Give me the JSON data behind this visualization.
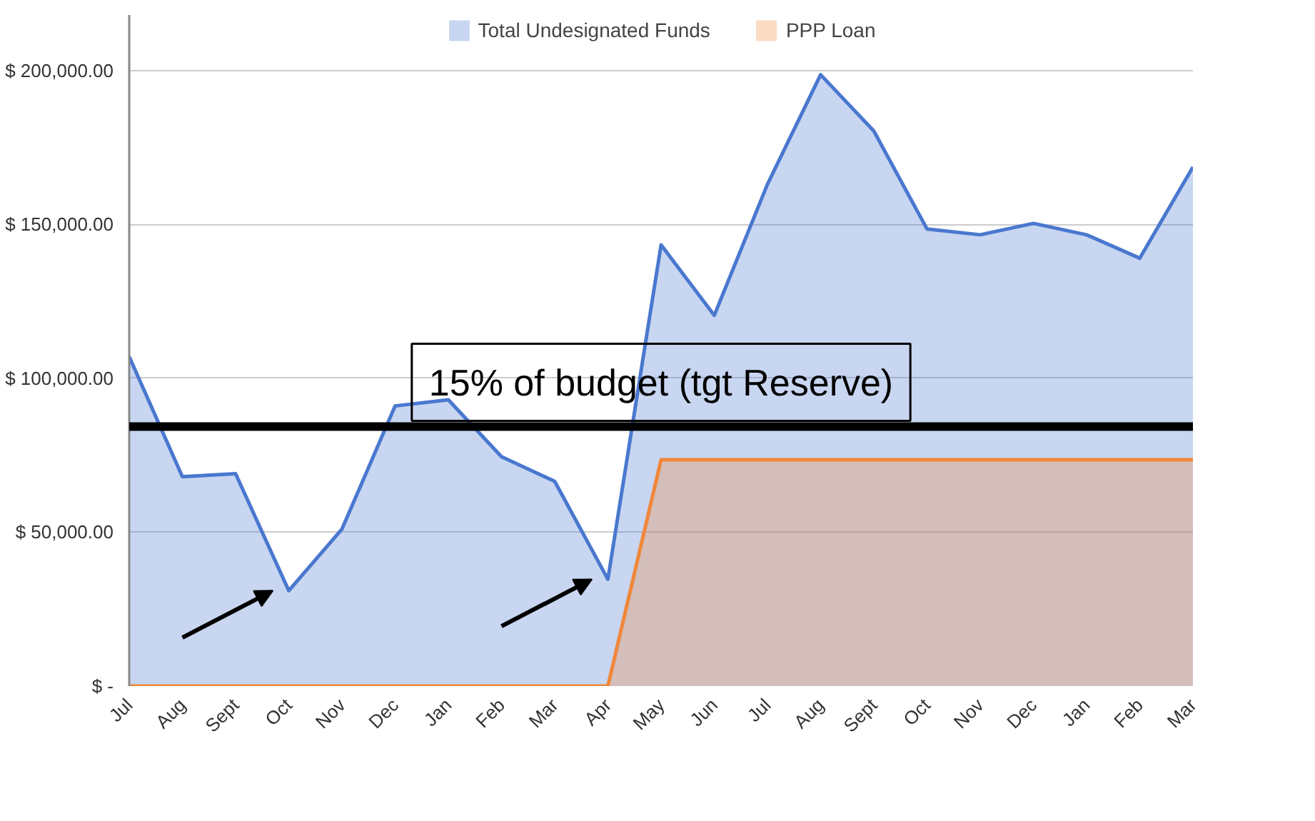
{
  "chart_data": {
    "type": "area",
    "categories": [
      "Jul",
      "Aug",
      "Sept",
      "Oct",
      "Nov",
      "Dec",
      "Jan",
      "Feb",
      "Mar",
      "Apr",
      "May",
      "Jun",
      "Jul",
      "Aug",
      "Sept",
      "Oct",
      "Nov",
      "Dec",
      "Jan",
      "Feb",
      "Mar"
    ],
    "series": [
      {
        "name": "Total Undesignated Funds",
        "color": "#4a78cf",
        "values": [
          107000,
          68000,
          69000,
          31000,
          51000,
          91000,
          93000,
          74500,
          66500,
          34700,
          143300,
          120400,
          163000,
          198600,
          180300,
          148500,
          146600,
          150300,
          146600,
          139000,
          168600
        ]
      },
      {
        "name": "PPP Loan",
        "color": "#f0873a",
        "values": [
          0,
          0,
          0,
          0,
          0,
          0,
          0,
          0,
          0,
          0,
          73500,
          73500,
          73500,
          73500,
          73500,
          73500,
          73500,
          73500,
          73500,
          73500,
          73500
        ]
      }
    ],
    "ylim": [
      0,
      218000
    ],
    "yticks": [
      {
        "value": 0,
        "label": "$ -"
      },
      {
        "value": 50000,
        "label": "$ 50,000.00"
      },
      {
        "value": 100000,
        "label": "$ 100,000.00"
      },
      {
        "value": 150000,
        "label": "$ 150,000.00"
      },
      {
        "value": 200000,
        "label": "$ 200,000.00"
      }
    ],
    "ref_lines": [
      {
        "axis": "y",
        "value": 84300,
        "label": "15% of budget (tgt Reserve)",
        "color": "#000000"
      }
    ],
    "grid": "y",
    "legend": "top"
  }
}
